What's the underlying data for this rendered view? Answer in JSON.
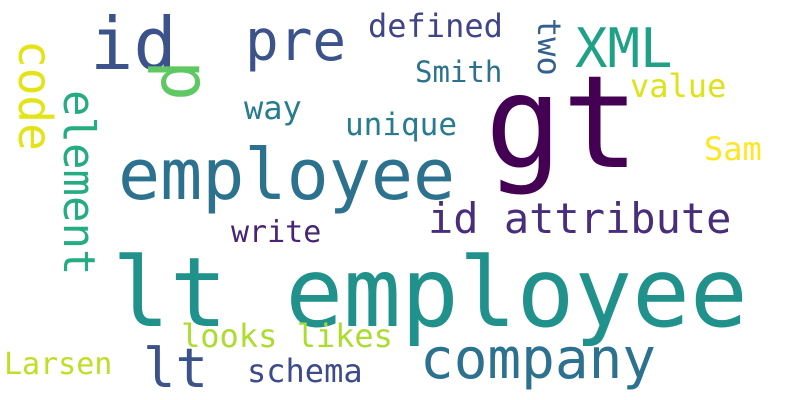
{
  "words": [
    {
      "id": "lt_employee",
      "text": "lt employee",
      "color": "#21918c"
    },
    {
      "id": "gt",
      "text": "gt",
      "color": "#440154"
    },
    {
      "id": "employee",
      "text": "employee",
      "color": "#2c728e"
    },
    {
      "id": "id",
      "text": "id",
      "color": "#3b528b"
    },
    {
      "id": "pre",
      "text": "pre",
      "color": "#3b528b"
    },
    {
      "id": "xml",
      "text": "XML",
      "color": "#1fa187"
    },
    {
      "id": "company",
      "text": "company",
      "color": "#2c728e"
    },
    {
      "id": "lt",
      "text": "lt",
      "color": "#3b528b"
    },
    {
      "id": "id_attribute",
      "text": "id attribute",
      "color": "#472d7b"
    },
    {
      "id": "p",
      "text": "p",
      "color": "#5ec962"
    },
    {
      "id": "code",
      "text": "code",
      "color": "#e3e418"
    },
    {
      "id": "element",
      "text": "element",
      "color": "#25ac82"
    },
    {
      "id": "defined",
      "text": "defined",
      "color": "#414487"
    },
    {
      "id": "two",
      "text": "two",
      "color": "#355f8d"
    },
    {
      "id": "smith",
      "text": "Smith",
      "color": "#2c728e"
    },
    {
      "id": "value",
      "text": "value",
      "color": "#dde318"
    },
    {
      "id": "way",
      "text": "way",
      "color": "#287c8e"
    },
    {
      "id": "unique",
      "text": "unique",
      "color": "#287c8e"
    },
    {
      "id": "sam",
      "text": "Sam",
      "color": "#fde725"
    },
    {
      "id": "write",
      "text": "write",
      "color": "#482475"
    },
    {
      "id": "looks_likes",
      "text": "looks likes",
      "color": "#addc30"
    },
    {
      "id": "larsen",
      "text": "Larsen",
      "color": "#bddf26"
    },
    {
      "id": "schema",
      "text": "schema",
      "color": "#3e4a89"
    }
  ]
}
